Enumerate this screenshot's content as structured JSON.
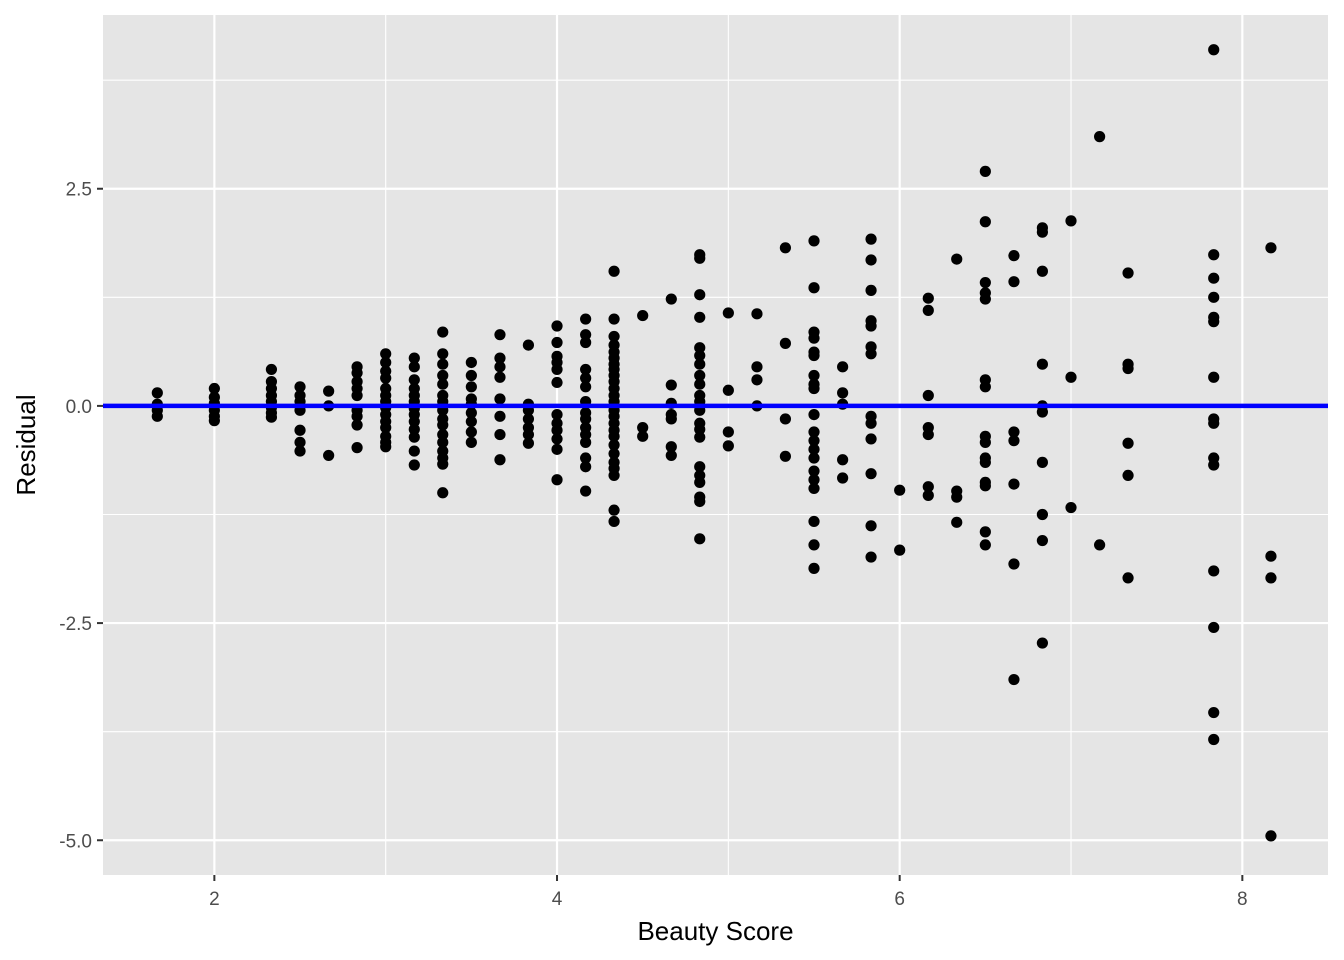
{
  "chart_data": {
    "type": "scatter",
    "title": "",
    "xlabel": "Beauty Score",
    "ylabel": "Residual",
    "xlim": [
      1.35,
      8.5
    ],
    "ylim": [
      -5.4,
      4.5
    ],
    "x_ticks": [
      2,
      4,
      6,
      8
    ],
    "y_ticks": [
      -5.0,
      -2.5,
      0.0,
      2.5
    ],
    "x_tick_labels": [
      "2",
      "4",
      "6",
      "8"
    ],
    "y_tick_labels": [
      "-5.0",
      "-2.5",
      "0.0",
      "2.5"
    ],
    "grid": true,
    "legend": "none",
    "background_color": "#e5e5e5",
    "grid_color": "#ffffff",
    "point_color": "#000000",
    "reference_line": {
      "y": 0.0,
      "color": "#0000ff"
    },
    "points": [
      [
        1.667,
        0.15
      ],
      [
        1.667,
        0.02
      ],
      [
        1.667,
        -0.05
      ],
      [
        1.667,
        -0.12
      ],
      [
        2.0,
        0.2
      ],
      [
        2.0,
        0.1
      ],
      [
        2.0,
        0.03
      ],
      [
        2.0,
        -0.05
      ],
      [
        2.0,
        -0.12
      ],
      [
        2.0,
        -0.17
      ],
      [
        2.333,
        0.42
      ],
      [
        2.333,
        0.28
      ],
      [
        2.333,
        0.2
      ],
      [
        2.333,
        0.12
      ],
      [
        2.333,
        0.05
      ],
      [
        2.333,
        -0.02
      ],
      [
        2.333,
        -0.08
      ],
      [
        2.333,
        -0.13
      ],
      [
        2.5,
        0.22
      ],
      [
        2.5,
        0.12
      ],
      [
        2.5,
        0.05
      ],
      [
        2.5,
        -0.05
      ],
      [
        2.5,
        -0.28
      ],
      [
        2.5,
        -0.42
      ],
      [
        2.5,
        -0.52
      ],
      [
        2.667,
        0.17
      ],
      [
        2.667,
        0.0
      ],
      [
        2.667,
        -0.57
      ],
      [
        2.833,
        0.45
      ],
      [
        2.833,
        0.38
      ],
      [
        2.833,
        0.28
      ],
      [
        2.833,
        0.2
      ],
      [
        2.833,
        0.12
      ],
      [
        2.833,
        -0.05
      ],
      [
        2.833,
        -0.12
      ],
      [
        2.833,
        -0.22
      ],
      [
        2.833,
        -0.48
      ],
      [
        3.0,
        0.6
      ],
      [
        3.0,
        0.5
      ],
      [
        3.0,
        0.4
      ],
      [
        3.0,
        0.32
      ],
      [
        3.0,
        0.2
      ],
      [
        3.0,
        0.12
      ],
      [
        3.0,
        0.05
      ],
      [
        3.0,
        -0.02
      ],
      [
        3.0,
        -0.1
      ],
      [
        3.0,
        -0.18
      ],
      [
        3.0,
        -0.25
      ],
      [
        3.0,
        -0.35
      ],
      [
        3.0,
        -0.42
      ],
      [
        3.0,
        -0.47
      ],
      [
        3.167,
        0.55
      ],
      [
        3.167,
        0.45
      ],
      [
        3.167,
        0.3
      ],
      [
        3.167,
        0.2
      ],
      [
        3.167,
        0.12
      ],
      [
        3.167,
        0.05
      ],
      [
        3.167,
        -0.03
      ],
      [
        3.167,
        -0.1
      ],
      [
        3.167,
        -0.18
      ],
      [
        3.167,
        -0.27
      ],
      [
        3.167,
        -0.36
      ],
      [
        3.167,
        -0.52
      ],
      [
        3.167,
        -0.68
      ],
      [
        3.333,
        0.85
      ],
      [
        3.333,
        0.6
      ],
      [
        3.333,
        0.48
      ],
      [
        3.333,
        0.35
      ],
      [
        3.333,
        0.25
      ],
      [
        3.333,
        0.12
      ],
      [
        3.333,
        0.05
      ],
      [
        3.333,
        -0.05
      ],
      [
        3.333,
        -0.15
      ],
      [
        3.333,
        -0.22
      ],
      [
        3.333,
        -0.33
      ],
      [
        3.333,
        -0.42
      ],
      [
        3.333,
        -0.52
      ],
      [
        3.333,
        -0.6
      ],
      [
        3.333,
        -0.67
      ],
      [
        3.333,
        -1.0
      ],
      [
        3.5,
        0.5
      ],
      [
        3.5,
        0.35
      ],
      [
        3.5,
        0.22
      ],
      [
        3.5,
        0.08
      ],
      [
        3.5,
        0.02
      ],
      [
        3.5,
        -0.08
      ],
      [
        3.5,
        -0.18
      ],
      [
        3.5,
        -0.3
      ],
      [
        3.5,
        -0.42
      ],
      [
        3.667,
        0.82
      ],
      [
        3.667,
        0.55
      ],
      [
        3.667,
        0.45
      ],
      [
        3.667,
        0.33
      ],
      [
        3.667,
        0.08
      ],
      [
        3.667,
        -0.12
      ],
      [
        3.667,
        -0.33
      ],
      [
        3.667,
        -0.62
      ],
      [
        3.833,
        0.7
      ],
      [
        3.833,
        0.02
      ],
      [
        3.833,
        -0.05
      ],
      [
        3.833,
        -0.15
      ],
      [
        3.833,
        -0.25
      ],
      [
        3.833,
        -0.33
      ],
      [
        3.833,
        -0.43
      ],
      [
        4.0,
        0.92
      ],
      [
        4.0,
        0.73
      ],
      [
        4.0,
        0.57
      ],
      [
        4.0,
        0.5
      ],
      [
        4.0,
        0.42
      ],
      [
        4.0,
        0.27
      ],
      [
        4.0,
        -0.1
      ],
      [
        4.0,
        -0.2
      ],
      [
        4.0,
        -0.28
      ],
      [
        4.0,
        -0.38
      ],
      [
        4.0,
        -0.5
      ],
      [
        4.0,
        -0.85
      ],
      [
        4.167,
        1.0
      ],
      [
        4.167,
        0.82
      ],
      [
        4.167,
        0.73
      ],
      [
        4.167,
        0.42
      ],
      [
        4.167,
        0.32
      ],
      [
        4.167,
        0.22
      ],
      [
        4.167,
        0.05
      ],
      [
        4.167,
        -0.08
      ],
      [
        4.167,
        -0.15
      ],
      [
        4.167,
        -0.25
      ],
      [
        4.167,
        -0.33
      ],
      [
        4.167,
        -0.42
      ],
      [
        4.167,
        -0.6
      ],
      [
        4.167,
        -0.7
      ],
      [
        4.167,
        -0.98
      ],
      [
        4.333,
        1.55
      ],
      [
        4.333,
        1.0
      ],
      [
        4.333,
        0.8
      ],
      [
        4.333,
        0.7
      ],
      [
        4.333,
        0.62
      ],
      [
        4.333,
        0.55
      ],
      [
        4.333,
        0.48
      ],
      [
        4.333,
        0.42
      ],
      [
        4.333,
        0.35
      ],
      [
        4.333,
        0.28
      ],
      [
        4.333,
        0.2
      ],
      [
        4.333,
        0.12
      ],
      [
        4.333,
        0.05
      ],
      [
        4.333,
        -0.05
      ],
      [
        4.333,
        -0.12
      ],
      [
        4.333,
        -0.2
      ],
      [
        4.333,
        -0.28
      ],
      [
        4.333,
        -0.35
      ],
      [
        4.333,
        -0.45
      ],
      [
        4.333,
        -0.55
      ],
      [
        4.333,
        -0.65
      ],
      [
        4.333,
        -0.72
      ],
      [
        4.333,
        -0.8
      ],
      [
        4.333,
        -1.2
      ],
      [
        4.333,
        -1.33
      ],
      [
        4.5,
        1.04
      ],
      [
        4.5,
        -0.25
      ],
      [
        4.5,
        -0.35
      ],
      [
        4.667,
        1.23
      ],
      [
        4.667,
        0.24
      ],
      [
        4.667,
        0.03
      ],
      [
        4.667,
        -0.1
      ],
      [
        4.667,
        -0.15
      ],
      [
        4.667,
        -0.47
      ],
      [
        4.667,
        -0.57
      ],
      [
        4.833,
        1.74
      ],
      [
        4.833,
        1.7
      ],
      [
        4.833,
        1.28
      ],
      [
        4.833,
        1.02
      ],
      [
        4.833,
        0.67
      ],
      [
        4.833,
        0.58
      ],
      [
        4.833,
        0.48
      ],
      [
        4.833,
        0.35
      ],
      [
        4.833,
        0.25
      ],
      [
        4.833,
        0.12
      ],
      [
        4.833,
        0.05
      ],
      [
        4.833,
        -0.05
      ],
      [
        4.833,
        -0.2
      ],
      [
        4.833,
        -0.27
      ],
      [
        4.833,
        -0.36
      ],
      [
        4.833,
        -0.7
      ],
      [
        4.833,
        -0.8
      ],
      [
        4.833,
        -0.88
      ],
      [
        4.833,
        -1.05
      ],
      [
        4.833,
        -1.1
      ],
      [
        4.833,
        -1.53
      ],
      [
        5.0,
        1.07
      ],
      [
        5.0,
        0.18
      ],
      [
        5.0,
        -0.3
      ],
      [
        5.0,
        -0.46
      ],
      [
        5.167,
        1.06
      ],
      [
        5.167,
        0.45
      ],
      [
        5.167,
        0.3
      ],
      [
        5.167,
        0.0
      ],
      [
        5.333,
        1.82
      ],
      [
        5.333,
        0.72
      ],
      [
        5.333,
        -0.15
      ],
      [
        5.333,
        -0.58
      ],
      [
        5.5,
        1.9
      ],
      [
        5.5,
        1.36
      ],
      [
        5.5,
        0.85
      ],
      [
        5.5,
        0.78
      ],
      [
        5.5,
        0.62
      ],
      [
        5.5,
        0.58
      ],
      [
        5.5,
        0.35
      ],
      [
        5.5,
        0.25
      ],
      [
        5.5,
        0.2
      ],
      [
        5.5,
        -0.1
      ],
      [
        5.5,
        -0.3
      ],
      [
        5.5,
        -0.4
      ],
      [
        5.5,
        -0.5
      ],
      [
        5.5,
        -0.6
      ],
      [
        5.5,
        -0.75
      ],
      [
        5.5,
        -0.85
      ],
      [
        5.5,
        -0.95
      ],
      [
        5.5,
        -1.33
      ],
      [
        5.5,
        -1.6
      ],
      [
        5.5,
        -1.87
      ],
      [
        5.667,
        0.45
      ],
      [
        5.667,
        0.15
      ],
      [
        5.667,
        0.02
      ],
      [
        5.667,
        -0.62
      ],
      [
        5.667,
        -0.83
      ],
      [
        5.833,
        1.92
      ],
      [
        5.833,
        1.68
      ],
      [
        5.833,
        1.33
      ],
      [
        5.833,
        0.98
      ],
      [
        5.833,
        0.92
      ],
      [
        5.833,
        0.68
      ],
      [
        5.833,
        0.6
      ],
      [
        5.833,
        -0.12
      ],
      [
        5.833,
        -0.2
      ],
      [
        5.833,
        -0.38
      ],
      [
        5.833,
        -0.78
      ],
      [
        5.833,
        -1.38
      ],
      [
        5.833,
        -1.74
      ],
      [
        6.0,
        -0.97
      ],
      [
        6.0,
        -1.66
      ],
      [
        6.167,
        1.24
      ],
      [
        6.167,
        1.1
      ],
      [
        6.167,
        0.12
      ],
      [
        6.167,
        -0.25
      ],
      [
        6.167,
        -0.33
      ],
      [
        6.167,
        -0.93
      ],
      [
        6.167,
        -1.03
      ],
      [
        6.333,
        1.69
      ],
      [
        6.333,
        -0.98
      ],
      [
        6.333,
        -1.05
      ],
      [
        6.333,
        -1.34
      ],
      [
        6.5,
        2.7
      ],
      [
        6.5,
        2.12
      ],
      [
        6.5,
        1.42
      ],
      [
        6.5,
        1.3
      ],
      [
        6.5,
        1.23
      ],
      [
        6.5,
        0.3
      ],
      [
        6.5,
        0.22
      ],
      [
        6.5,
        -0.35
      ],
      [
        6.5,
        -0.42
      ],
      [
        6.5,
        -0.6
      ],
      [
        6.5,
        -0.65
      ],
      [
        6.5,
        -0.88
      ],
      [
        6.5,
        -0.92
      ],
      [
        6.5,
        -1.45
      ],
      [
        6.5,
        -1.6
      ],
      [
        6.667,
        1.73
      ],
      [
        6.667,
        1.43
      ],
      [
        6.667,
        -0.3
      ],
      [
        6.667,
        -0.4
      ],
      [
        6.667,
        -0.9
      ],
      [
        6.667,
        -1.82
      ],
      [
        6.667,
        -3.15
      ],
      [
        6.833,
        2.05
      ],
      [
        6.833,
        2.0
      ],
      [
        6.833,
        1.55
      ],
      [
        6.833,
        0.48
      ],
      [
        6.833,
        0.0
      ],
      [
        6.833,
        -0.07
      ],
      [
        6.833,
        -0.65
      ],
      [
        6.833,
        -1.25
      ],
      [
        6.833,
        -1.55
      ],
      [
        6.833,
        -2.73
      ],
      [
        7.0,
        2.13
      ],
      [
        7.0,
        0.33
      ],
      [
        7.0,
        -1.17
      ],
      [
        7.167,
        3.1
      ],
      [
        7.167,
        -1.6
      ],
      [
        7.333,
        1.53
      ],
      [
        7.333,
        0.48
      ],
      [
        7.333,
        0.43
      ],
      [
        7.333,
        -0.43
      ],
      [
        7.333,
        -0.8
      ],
      [
        7.333,
        -1.98
      ],
      [
        7.833,
        4.1
      ],
      [
        7.833,
        1.74
      ],
      [
        7.833,
        1.47
      ],
      [
        7.833,
        1.25
      ],
      [
        7.833,
        1.02
      ],
      [
        7.833,
        0.97
      ],
      [
        7.833,
        0.33
      ],
      [
        7.833,
        -0.15
      ],
      [
        7.833,
        -0.2
      ],
      [
        7.833,
        -0.6
      ],
      [
        7.833,
        -0.68
      ],
      [
        7.833,
        -1.9
      ],
      [
        7.833,
        -2.55
      ],
      [
        7.833,
        -3.53
      ],
      [
        7.833,
        -3.84
      ],
      [
        8.167,
        1.82
      ],
      [
        8.167,
        -1.73
      ],
      [
        8.167,
        -1.98
      ],
      [
        8.167,
        -4.95
      ]
    ]
  }
}
